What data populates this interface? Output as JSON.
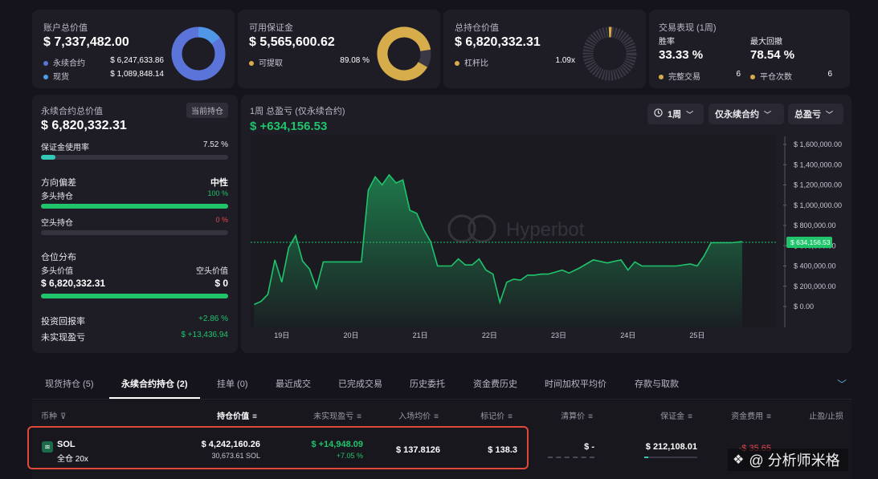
{
  "summary": {
    "account_total": {
      "title": "账户总价值",
      "value": "$ 7,337,482.00",
      "items": [
        {
          "label": "永续合约",
          "value": "$ 6,247,633.86",
          "color": "#5b74d9"
        },
        {
          "label": "现货",
          "value": "$ 1,089,848.14",
          "color": "#4f9be8"
        }
      ]
    },
    "available_margin": {
      "title": "可用保证金",
      "value": "$ 5,565,600.62",
      "items": [
        {
          "label": "可提取",
          "value": "89.08 %",
          "color": "#d6ad4a"
        }
      ]
    },
    "position_total": {
      "title": "总持仓价值",
      "value": "$ 6,820,332.31",
      "items": [
        {
          "label": "杠杆比",
          "value": "1.09x",
          "color": "#d6ad4a"
        }
      ]
    },
    "performance": {
      "title": "交易表现 (1周)",
      "win_rate_label": "胜率",
      "win_rate": "33.33 %",
      "drawdown_label": "最大回撤",
      "drawdown": "78.54 %",
      "completed_label": "完整交易",
      "completed": "6",
      "closed_label": "平仓次数",
      "closed": "6"
    }
  },
  "perp_panel": {
    "title": "永续合约总价值",
    "badge": "当前持仓",
    "value": "$ 6,820,332.31",
    "margin_usage_label": "保证金使用率",
    "margin_usage": "7.52 %",
    "margin_usage_fraction": 0.0752,
    "direction_label": "方向偏差",
    "direction_value": "中性",
    "long_label": "多头持仓",
    "long_pct": "100 %",
    "long_fraction": 1.0,
    "short_label": "空头持仓",
    "short_pct": "0 %",
    "short_fraction": 0.0,
    "distribution_label": "仓位分布",
    "long_value_label": "多头价值",
    "short_value_label": "空头价值",
    "long_value": "$ 6,820,332.31",
    "short_value": "$ 0",
    "roi_label": "投资回报率",
    "roi": "+2.86 %",
    "unrealized_label": "未实现盈亏",
    "unrealized": "$ +13,436.94"
  },
  "chart_panel": {
    "title": "1周 总盈亏 (仅永续合约)",
    "value": "$ +634,156.53",
    "watermark": "Hyperbot",
    "period_button": "1周",
    "filter_button": "仅永续合约",
    "metric_button": "总盈亏",
    "current_label": "$ 634,156.53"
  },
  "chart_data": {
    "type": "area",
    "color": "#1fc46b",
    "ylim": [
      0,
      1600000
    ],
    "yticks": [
      "$ 0.00",
      "$ 200,000.00",
      "$ 400,000.00",
      "$ 600,000.00",
      "$ 800,000.00",
      "$ 1,000,000.00",
      "$ 1,200,000.00",
      "$ 1,400,000.00",
      "$ 1,600,000.00"
    ],
    "ytick_values": [
      0,
      200000,
      400000,
      600000,
      800000,
      1000000,
      1200000,
      1400000,
      1600000
    ],
    "xticks": [
      "19日",
      "20日",
      "21日",
      "22日",
      "23日",
      "24日",
      "25日"
    ],
    "xtick_positions": [
      19.0,
      20.0,
      21.0,
      22.0,
      23.0,
      24.0,
      25.0
    ],
    "xlim": [
      18.55,
      26.15
    ],
    "current": 634156.53,
    "x": [
      18.6,
      18.7,
      18.8,
      18.9,
      19.0,
      19.1,
      19.2,
      19.3,
      19.4,
      19.5,
      19.6,
      19.7,
      19.8,
      19.9,
      20.0,
      20.15,
      20.25,
      20.35,
      20.45,
      20.55,
      20.65,
      20.75,
      20.85,
      20.95,
      21.05,
      21.15,
      21.25,
      21.35,
      21.45,
      21.55,
      21.65,
      21.75,
      21.85,
      21.95,
      22.05,
      22.15,
      22.25,
      22.35,
      22.45,
      22.55,
      22.65,
      22.75,
      22.85,
      22.95,
      23.05,
      23.15,
      23.3,
      23.5,
      23.7,
      23.9,
      24.0,
      24.1,
      24.2,
      24.3,
      24.4,
      24.5,
      24.7,
      24.9,
      25.0,
      25.1,
      25.2,
      25.3,
      25.5,
      25.65
    ],
    "y": [
      20000,
      50000,
      120000,
      460000,
      240000,
      580000,
      700000,
      450000,
      370000,
      180000,
      440000,
      440000,
      440000,
      440000,
      440000,
      440000,
      1150000,
      1280000,
      1200000,
      1300000,
      1220000,
      1250000,
      950000,
      920000,
      760000,
      640000,
      400000,
      400000,
      400000,
      470000,
      410000,
      410000,
      470000,
      360000,
      320000,
      40000,
      240000,
      270000,
      260000,
      310000,
      310000,
      320000,
      320000,
      340000,
      360000,
      330000,
      380000,
      460000,
      430000,
      460000,
      360000,
      440000,
      400000,
      400000,
      400000,
      400000,
      400000,
      420000,
      400000,
      500000,
      630000,
      630000,
      630000,
      640000
    ]
  },
  "tabs": [
    "现货持仓 (5)",
    "永续合约持仓 (2)",
    "挂单 (0)",
    "最近成交",
    "已完成交易",
    "历史委托",
    "资金费历史",
    "时间加权平均价",
    "存款与取款"
  ],
  "active_tab": 1,
  "table": {
    "headers": [
      "币种",
      "持仓价值",
      "未实现盈亏",
      "入场均价",
      "标记价",
      "清算价",
      "保证金",
      "资金费用",
      "止盈/止损"
    ],
    "row": {
      "symbol": "SOL",
      "mode": "全仓 20x",
      "value": "$ 4,242,160.26",
      "qty": "30,673.61 SOL",
      "pnl": "$ +14,948.09",
      "pnl_pct": "+7.05 %",
      "entry": "$ 137.8126",
      "mark": "$ 138.3",
      "liq": "$ -",
      "margin": "$ 212,108.01",
      "funding": "-$ 35.65"
    }
  },
  "watermark_footer": "@ 分析师米格"
}
